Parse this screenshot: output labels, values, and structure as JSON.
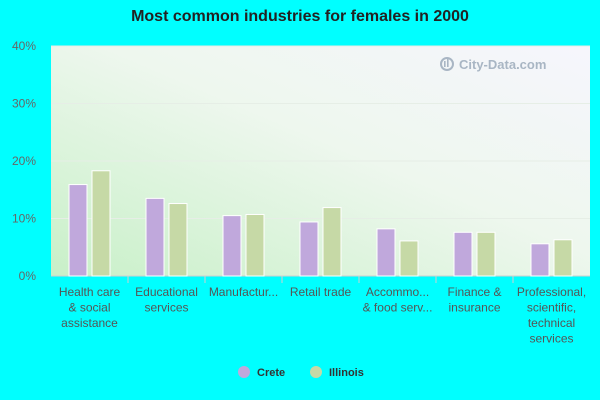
{
  "chart_data": {
    "type": "bar",
    "title": "Most common industries for females in 2000",
    "categories": [
      [
        "Health care",
        "& social",
        "assistance"
      ],
      [
        "Educational",
        "services"
      ],
      [
        "Manufactur..."
      ],
      [
        "Retail trade"
      ],
      [
        "Accommo...",
        "& food serv..."
      ],
      [
        "Finance &",
        "insurance"
      ],
      [
        "Professional,",
        "scientific,",
        "technical",
        "services"
      ]
    ],
    "series": [
      {
        "name": "Crete",
        "color": "#c0a8dc",
        "values": [
          15.9,
          13.5,
          10.5,
          9.4,
          8.2,
          7.6,
          5.6
        ]
      },
      {
        "name": "Illinois",
        "color": "#c6d9a6",
        "values": [
          18.3,
          12.6,
          10.7,
          11.9,
          6.1,
          7.6,
          6.3
        ]
      }
    ],
    "yticks": [
      "0%",
      "10%",
      "20%",
      "30%",
      "40%"
    ],
    "ylim": [
      0,
      40
    ],
    "grid": true,
    "legend": "bottom-center",
    "watermark": "City-Data.com"
  }
}
